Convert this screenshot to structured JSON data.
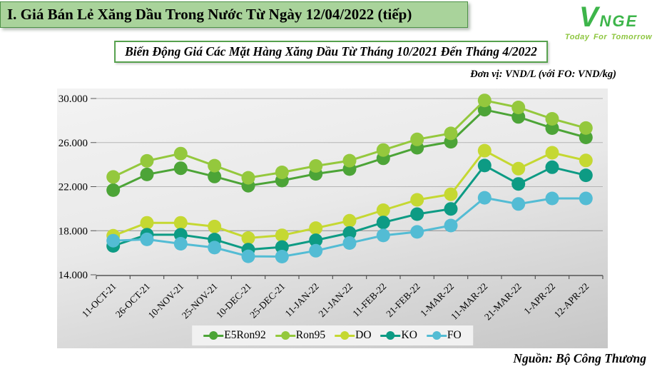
{
  "header": {
    "title": "I. Giá Bán Lẻ Xăng Dầu Trong Nước Từ Ngày 12/04/2022 (tiếp)"
  },
  "logo": {
    "brand": "VNGE",
    "tagline": "Today For Tomorrow",
    "brand_color": "#3DB54A",
    "tagline_color": "#8DC63F"
  },
  "chart_title": "Biến Động Giá Các Mặt Hàng Xăng Dầu Từ Tháng 10/2021 Đến Tháng 4/2022",
  "unit_note": "Đơn vị: VND/L (với FO: VND/kg)",
  "source": "Nguồn: Bộ Công Thương",
  "colors": {
    "header_bg": "#A9D39B",
    "header_border": "#4E9148",
    "title_border": "#55A04C",
    "grid_light": "#b5b5b5",
    "grid_dark": "#8e8e8e",
    "axis": "#555555"
  },
  "chart_data": {
    "type": "line",
    "title": "Biến Động Giá Các Mặt Hàng Xăng Dầu Từ Tháng 10/2021 Đến Tháng 4/2022",
    "xlabel": "",
    "ylabel": "VND/L (với FO: VND/kg)",
    "ylim": [
      14000,
      30000
    ],
    "ytick_step": 4000,
    "ytick_labels": [
      "14.000",
      "18.000",
      "22.000",
      "26.000",
      "30.000"
    ],
    "grid": true,
    "legend_position": "bottom",
    "categories": [
      "11-OCT-21",
      "26-OCT-21",
      "10-NOV-21",
      "25-NOV-21",
      "10-DEC-21",
      "25-DEC-21",
      "11-JAN-22",
      "21-JAN-22",
      "11-FEB-22",
      "21-FEB-22",
      "1-MAR-22",
      "11-MAR-22",
      "21-MAR-22",
      "1-APR-22",
      "12-APR-22"
    ],
    "series": [
      {
        "name": "E5Ron92",
        "color": "#4CA437",
        "values": [
          21683,
          23110,
          23669,
          22917,
          22082,
          22550,
          23159,
          23595,
          24571,
          25532,
          26077,
          28985,
          28330,
          27309,
          26470
        ]
      },
      {
        "name": "Ron95",
        "color": "#94C83D",
        "values": [
          22879,
          24338,
          24996,
          23902,
          22801,
          23295,
          23876,
          24360,
          25322,
          26287,
          26834,
          29824,
          29192,
          28153,
          27317
        ]
      },
      {
        "name": "DO",
        "color": "#C5D832",
        "values": [
          17545,
          18716,
          18716,
          18382,
          17334,
          17579,
          18239,
          18903,
          19865,
          20801,
          21310,
          25268,
          23633,
          25080,
          24380
        ]
      },
      {
        "name": "KO",
        "color": "#0D9B84",
        "values": [
          16622,
          17637,
          17637,
          17197,
          16279,
          16518,
          17138,
          17793,
          18751,
          19509,
          19978,
          23918,
          22245,
          23764,
          23027
        ]
      },
      {
        "name": "FO",
        "color": "#53BCD4",
        "values": [
          17097,
          17210,
          16820,
          16470,
          15680,
          15650,
          16180,
          16880,
          17570,
          17890,
          18468,
          20987,
          20423,
          20929,
          20929
        ]
      }
    ]
  }
}
